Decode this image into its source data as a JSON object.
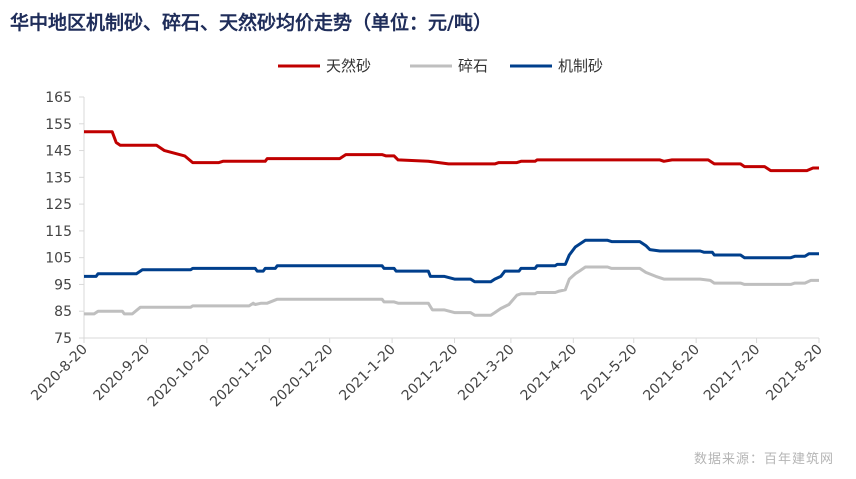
{
  "title": "华中地区机制砂、碎石、天然砂均价走势（单位：元/吨）",
  "source": "数据来源：百年建筑网",
  "chart_data": {
    "type": "line",
    "title": "华中地区机制砂、碎石、天然砂均价走势（单位：元/吨）",
    "xlabel": "",
    "ylabel": "",
    "ylim": [
      75,
      165
    ],
    "yticks": [
      75,
      85,
      95,
      105,
      115,
      125,
      135,
      145,
      155,
      165
    ],
    "xlim": [
      "2020-08-20",
      "2021-08-20"
    ],
    "xticks": [
      "2020-8-20",
      "2020-9-20",
      "2020-10-20",
      "2020-11-20",
      "2020-12-20",
      "2021-1-20",
      "2021-2-20",
      "2021-3-20",
      "2021-4-20",
      "2021-5-20",
      "2021-6-20",
      "2021-7-20",
      "2021-8-20"
    ],
    "grid": false,
    "legend": "top",
    "series": [
      {
        "name": "天然砂",
        "color": "#c00000",
        "points": [
          [
            "2020-08-20",
            152
          ],
          [
            "2020-09-03",
            152
          ],
          [
            "2020-09-05",
            148
          ],
          [
            "2020-09-07",
            147
          ],
          [
            "2020-09-25",
            147
          ],
          [
            "2020-09-29",
            145
          ],
          [
            "2020-10-09",
            143
          ],
          [
            "2020-10-13",
            140.5
          ],
          [
            "2020-10-26",
            140.5
          ],
          [
            "2020-10-28",
            141
          ],
          [
            "2020-11-18",
            141
          ],
          [
            "2020-11-19",
            142
          ],
          [
            "2020-12-25",
            142
          ],
          [
            "2020-12-28",
            143.5
          ],
          [
            "2021-01-15",
            143.5
          ],
          [
            "2021-01-17",
            143
          ],
          [
            "2021-01-21",
            143
          ],
          [
            "2021-01-23",
            141.5
          ],
          [
            "2021-02-07",
            141
          ],
          [
            "2021-02-17",
            140
          ],
          [
            "2021-03-12",
            140
          ],
          [
            "2021-03-14",
            140.5
          ],
          [
            "2021-03-23",
            140.5
          ],
          [
            "2021-03-25",
            141
          ],
          [
            "2021-04-01",
            141
          ],
          [
            "2021-04-02",
            141.5
          ],
          [
            "2021-06-02",
            141.5
          ],
          [
            "2021-06-04",
            141
          ],
          [
            "2021-06-08",
            141.5
          ],
          [
            "2021-06-26",
            141.5
          ],
          [
            "2021-06-29",
            140
          ],
          [
            "2021-07-12",
            140
          ],
          [
            "2021-07-14",
            139
          ],
          [
            "2021-07-24",
            139
          ],
          [
            "2021-07-27",
            137.5
          ],
          [
            "2021-08-14",
            137.5
          ],
          [
            "2021-08-17",
            138.5
          ],
          [
            "2021-08-20",
            138.5
          ]
        ]
      },
      {
        "name": "碎石",
        "color": "#bfbfbf",
        "points": [
          [
            "2020-08-20",
            84
          ],
          [
            "2020-08-25",
            84
          ],
          [
            "2020-08-27",
            85
          ],
          [
            "2020-09-08",
            85
          ],
          [
            "2020-09-09",
            84
          ],
          [
            "2020-09-13",
            84
          ],
          [
            "2020-09-17",
            86.5
          ],
          [
            "2020-10-12",
            86.5
          ],
          [
            "2020-10-13",
            87
          ],
          [
            "2020-11-10",
            87
          ],
          [
            "2020-11-12",
            88
          ],
          [
            "2020-11-13",
            87.5
          ],
          [
            "2020-11-16",
            88
          ],
          [
            "2020-11-19",
            88
          ],
          [
            "2020-11-24",
            89.5
          ],
          [
            "2021-01-15",
            89.5
          ],
          [
            "2021-01-16",
            88.5
          ],
          [
            "2021-01-21",
            88.5
          ],
          [
            "2021-01-23",
            88
          ],
          [
            "2021-02-07",
            88
          ],
          [
            "2021-02-09",
            85.5
          ],
          [
            "2021-02-15",
            85.5
          ],
          [
            "2021-02-20",
            84.5
          ],
          [
            "2021-02-28",
            84.5
          ],
          [
            "2021-03-02",
            83.5
          ],
          [
            "2021-03-10",
            83.5
          ],
          [
            "2021-03-12",
            84.5
          ],
          [
            "2021-03-15",
            86
          ],
          [
            "2021-03-19",
            87.5
          ],
          [
            "2021-03-23",
            91
          ],
          [
            "2021-03-25",
            91.5
          ],
          [
            "2021-04-01",
            91.5
          ],
          [
            "2021-04-02",
            92
          ],
          [
            "2021-04-11",
            92
          ],
          [
            "2021-04-13",
            92.5
          ],
          [
            "2021-04-16",
            93
          ],
          [
            "2021-04-18",
            97
          ],
          [
            "2021-04-21",
            99
          ],
          [
            "2021-04-23",
            100
          ],
          [
            "2021-04-26",
            101.5
          ],
          [
            "2021-05-07",
            101.5
          ],
          [
            "2021-05-09",
            101
          ],
          [
            "2021-05-23",
            101
          ],
          [
            "2021-05-26",
            99.5
          ],
          [
            "2021-05-31",
            98
          ],
          [
            "2021-06-04",
            97
          ],
          [
            "2021-06-22",
            97
          ],
          [
            "2021-06-27",
            96.5
          ],
          [
            "2021-06-29",
            95.5
          ],
          [
            "2021-07-12",
            95.5
          ],
          [
            "2021-07-14",
            95
          ],
          [
            "2021-08-06",
            95
          ],
          [
            "2021-08-08",
            95.5
          ],
          [
            "2021-08-13",
            95.5
          ],
          [
            "2021-08-16",
            96.5
          ],
          [
            "2021-08-20",
            96.5
          ]
        ]
      },
      {
        "name": "机制砂",
        "color": "#003f8c",
        "points": [
          [
            "2020-08-20",
            98
          ],
          [
            "2020-08-26",
            98
          ],
          [
            "2020-08-27",
            99
          ],
          [
            "2020-09-15",
            99
          ],
          [
            "2020-09-18",
            100.5
          ],
          [
            "2020-10-12",
            100.5
          ],
          [
            "2020-10-13",
            101
          ],
          [
            "2020-11-13",
            101
          ],
          [
            "2020-11-14",
            100
          ],
          [
            "2020-11-17",
            100
          ],
          [
            "2020-11-18",
            101
          ],
          [
            "2020-11-23",
            101
          ],
          [
            "2020-11-24",
            102
          ],
          [
            "2021-01-15",
            102
          ],
          [
            "2021-01-16",
            101
          ],
          [
            "2021-01-21",
            101
          ],
          [
            "2021-01-22",
            100
          ],
          [
            "2021-02-07",
            100
          ],
          [
            "2021-02-08",
            98
          ],
          [
            "2021-02-15",
            98
          ],
          [
            "2021-02-20",
            97
          ],
          [
            "2021-02-28",
            97
          ],
          [
            "2021-03-02",
            96
          ],
          [
            "2021-03-10",
            96
          ],
          [
            "2021-03-12",
            97
          ],
          [
            "2021-03-15",
            98
          ],
          [
            "2021-03-17",
            100
          ],
          [
            "2021-03-24",
            100
          ],
          [
            "2021-03-25",
            101
          ],
          [
            "2021-04-01",
            101
          ],
          [
            "2021-04-02",
            102
          ],
          [
            "2021-04-11",
            102
          ],
          [
            "2021-04-12",
            102.5
          ],
          [
            "2021-04-16",
            102.5
          ],
          [
            "2021-04-18",
            106
          ],
          [
            "2021-04-21",
            109
          ],
          [
            "2021-04-23",
            110
          ],
          [
            "2021-04-26",
            111.5
          ],
          [
            "2021-05-07",
            111.5
          ],
          [
            "2021-05-09",
            111
          ],
          [
            "2021-05-23",
            111
          ],
          [
            "2021-05-26",
            109.5
          ],
          [
            "2021-05-28",
            108
          ],
          [
            "2021-06-02",
            107.5
          ],
          [
            "2021-06-22",
            107.5
          ],
          [
            "2021-06-24",
            107
          ],
          [
            "2021-06-28",
            107
          ],
          [
            "2021-06-29",
            106
          ],
          [
            "2021-07-12",
            106
          ],
          [
            "2021-07-14",
            105
          ],
          [
            "2021-08-06",
            105
          ],
          [
            "2021-08-08",
            105.5
          ],
          [
            "2021-08-13",
            105.5
          ],
          [
            "2021-08-15",
            106.5
          ],
          [
            "2021-08-20",
            106.5
          ]
        ]
      }
    ]
  }
}
